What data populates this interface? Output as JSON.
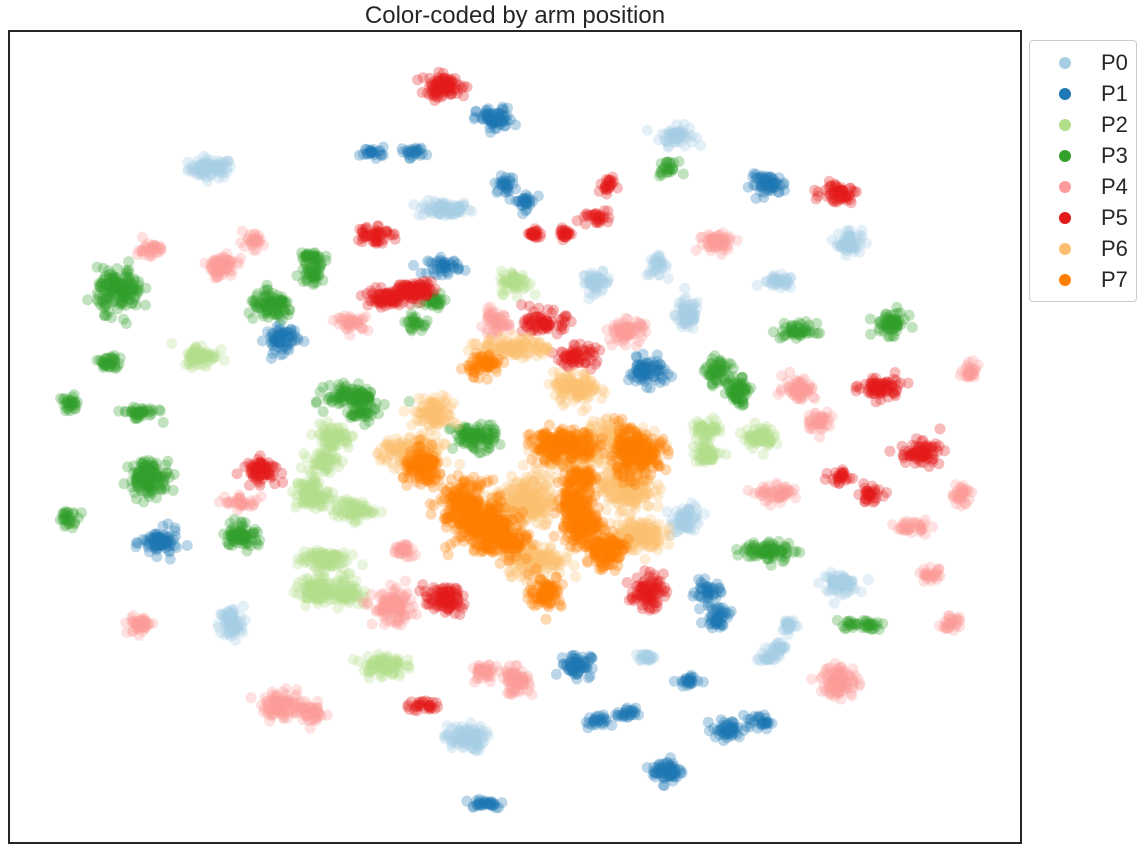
{
  "chart_data": {
    "type": "scatter",
    "title": "Color-coded by arm position",
    "xlabel": "",
    "ylabel": "",
    "xlim": [
      0,
      100
    ],
    "ylim": [
      0,
      100
    ],
    "grid": false,
    "legend_placement": "outside upper-right",
    "marker_alpha": 0.3,
    "series": [
      {
        "name": "P0",
        "color": "#a6cee3",
        "clusters": [
          [
            20,
            83,
            2.2,
            1.2
          ],
          [
            43,
            78,
            2.6,
            1.0
          ],
          [
            66,
            87,
            1.7,
            1.2
          ],
          [
            83,
            74,
            1.2,
            1.6
          ],
          [
            58,
            69,
            1.4,
            1.2
          ],
          [
            64,
            71,
            1.0,
            1.2
          ],
          [
            67,
            65,
            1.2,
            2.0
          ],
          [
            76,
            69,
            1.6,
            0.8
          ],
          [
            67,
            40,
            1.4,
            1.6
          ],
          [
            82,
            32,
            1.8,
            1.2
          ],
          [
            22,
            27,
            1.2,
            2.2
          ],
          [
            77,
            27,
            0.8,
            0.9
          ],
          [
            76,
            24,
            0.9,
            0.8
          ],
          [
            75,
            23,
            0.9,
            0.6
          ],
          [
            63,
            23,
            0.8,
            0.5
          ],
          [
            45,
            13,
            2.0,
            1.6
          ]
        ]
      },
      {
        "name": "P1",
        "color": "#1f78b4",
        "clusters": [
          [
            48,
            89,
            1.8,
            1.4
          ],
          [
            36,
            85,
            1.2,
            0.6
          ],
          [
            40,
            85,
            1.2,
            0.7
          ],
          [
            49,
            81,
            1.0,
            1.0
          ],
          [
            51,
            79,
            1.0,
            1.0
          ],
          [
            75,
            81,
            1.8,
            1.2
          ],
          [
            43,
            71,
            1.6,
            1.0
          ],
          [
            27,
            62,
            1.6,
            1.6
          ],
          [
            63,
            58,
            1.8,
            1.6
          ],
          [
            15,
            37,
            1.8,
            1.6
          ],
          [
            69,
            31,
            1.2,
            1.2
          ],
          [
            70,
            28,
            1.2,
            1.4
          ],
          [
            56,
            22,
            1.5,
            1.5
          ],
          [
            67,
            20,
            1.1,
            0.7
          ],
          [
            58,
            15,
            1.1,
            0.8
          ],
          [
            61,
            16,
            0.9,
            0.7
          ],
          [
            71,
            14,
            1.5,
            1.2
          ],
          [
            74,
            15,
            1.2,
            0.9
          ],
          [
            65,
            9,
            1.5,
            1.5
          ],
          [
            47,
            5,
            2.0,
            0.6
          ]
        ]
      },
      {
        "name": "P2",
        "color": "#b2df8a",
        "clusters": [
          [
            50,
            69,
            1.4,
            1.4
          ],
          [
            19,
            60,
            1.7,
            1.4
          ],
          [
            32,
            50,
            1.8,
            1.5
          ],
          [
            31,
            47,
            1.5,
            1.2
          ],
          [
            30,
            43,
            1.6,
            2.0
          ],
          [
            34,
            41,
            2.0,
            1.2
          ],
          [
            31,
            35,
            2.4,
            1.4
          ],
          [
            30,
            31,
            1.6,
            1.6
          ],
          [
            33,
            31,
            1.8,
            1.8
          ],
          [
            69,
            51,
            1.5,
            1.2
          ],
          [
            69,
            48,
            1.4,
            1.2
          ],
          [
            74,
            50,
            1.5,
            1.4
          ],
          [
            37,
            22,
            2.0,
            1.5
          ]
        ]
      },
      {
        "name": "P3",
        "color": "#33a02c",
        "clusters": [
          [
            11,
            68,
            2.2,
            2.6
          ],
          [
            26,
            66,
            2.2,
            1.6
          ],
          [
            30,
            72,
            1.2,
            1.0
          ],
          [
            30,
            70,
            1.2,
            1.2
          ],
          [
            42,
            67,
            1.2,
            1.0
          ],
          [
            40,
            64,
            0.9,
            0.9
          ],
          [
            65,
            83,
            1.0,
            0.8
          ],
          [
            78,
            63,
            1.8,
            1.0
          ],
          [
            87,
            64,
            1.6,
            1.4
          ],
          [
            10,
            59,
            1.2,
            1.0
          ],
          [
            13,
            53,
            1.8,
            0.8
          ],
          [
            6,
            54,
            1.0,
            1.0
          ],
          [
            34,
            55,
            2.6,
            1.4
          ],
          [
            35,
            53,
            1.2,
            1.2
          ],
          [
            46,
            50,
            2.2,
            1.6
          ],
          [
            70,
            58,
            1.2,
            1.6
          ],
          [
            72,
            56,
            1.2,
            1.2
          ],
          [
            72,
            55,
            1.0,
            1.0
          ],
          [
            14,
            45,
            2.0,
            2.2
          ],
          [
            6,
            40,
            1.0,
            1.0
          ],
          [
            23,
            38,
            1.6,
            1.6
          ],
          [
            75,
            36,
            2.6,
            1.2
          ],
          [
            84,
            27,
            2.4,
            0.6
          ]
        ]
      },
      {
        "name": "P4",
        "color": "#fb9a99",
        "clusters": [
          [
            14,
            73,
            1.2,
            1.0
          ],
          [
            21,
            71,
            1.6,
            1.4
          ],
          [
            24,
            74,
            1.2,
            0.9
          ],
          [
            48,
            64,
            1.4,
            1.4
          ],
          [
            61,
            63,
            1.8,
            1.4
          ],
          [
            34,
            64,
            1.6,
            0.9
          ],
          [
            70,
            74,
            1.8,
            1.2
          ],
          [
            78,
            56,
            1.6,
            1.4
          ],
          [
            80,
            52,
            1.2,
            1.2
          ],
          [
            95,
            58,
            1.0,
            1.0
          ],
          [
            23,
            42,
            1.6,
            0.8
          ],
          [
            39,
            36,
            1.1,
            1.0
          ],
          [
            76,
            43,
            2.0,
            1.0
          ],
          [
            89,
            39,
            1.6,
            0.8
          ],
          [
            94,
            43,
            1.0,
            1.2
          ],
          [
            91,
            33,
            1.2,
            0.8
          ],
          [
            93,
            27,
            1.0,
            1.0
          ],
          [
            38,
            29,
            2.0,
            2.0
          ],
          [
            13,
            27,
            1.2,
            1.2
          ],
          [
            47,
            21,
            1.2,
            1.2
          ],
          [
            50,
            20,
            1.4,
            1.6
          ],
          [
            82,
            20,
            1.8,
            2.0
          ],
          [
            27,
            17,
            2.0,
            1.6
          ],
          [
            30,
            16,
            1.2,
            1.2
          ]
        ]
      },
      {
        "name": "P5",
        "color": "#e31a1c",
        "clusters": [
          [
            43,
            93,
            2.2,
            1.4
          ],
          [
            58,
            77,
            1.2,
            0.9
          ],
          [
            59,
            81,
            1.0,
            0.8
          ],
          [
            82,
            80,
            1.8,
            1.2
          ],
          [
            36,
            75,
            1.6,
            1.2
          ],
          [
            37,
            67,
            2.2,
            1.2
          ],
          [
            40,
            68,
            2.0,
            1.2
          ],
          [
            53,
            64,
            2.0,
            1.4
          ],
          [
            56,
            60,
            2.0,
            1.2
          ],
          [
            86,
            56,
            2.0,
            1.4
          ],
          [
            90,
            48,
            2.0,
            1.4
          ],
          [
            25,
            46,
            1.8,
            1.4
          ],
          [
            82,
            45,
            1.0,
            1.0
          ],
          [
            85,
            43,
            1.2,
            1.0
          ],
          [
            43,
            30,
            2.0,
            1.6
          ],
          [
            63,
            31,
            1.6,
            2.0
          ],
          [
            41,
            17,
            1.4,
            0.8
          ],
          [
            52,
            75,
            0.6,
            0.6
          ],
          [
            55,
            75,
            0.6,
            0.6
          ],
          [
            40,
            68,
            1.8,
            0.9
          ]
        ]
      },
      {
        "name": "P6",
        "color": "#fdbf6f",
        "clusters": [
          [
            50,
            61,
            3.4,
            1.2
          ],
          [
            42,
            53,
            2.0,
            1.8
          ],
          [
            40,
            48,
            3.0,
            2.0
          ],
          [
            51,
            42,
            3.0,
            3.0
          ],
          [
            52,
            35,
            2.8,
            2.0
          ],
          [
            55,
            48,
            3.0,
            2.2
          ],
          [
            60,
            50,
            3.0,
            2.0
          ],
          [
            61,
            44,
            2.6,
            3.0
          ],
          [
            62,
            38,
            2.6,
            2.0
          ],
          [
            56,
            56,
            2.2,
            1.8
          ]
        ]
      },
      {
        "name": "P7",
        "color": "#ff7f00",
        "clusters": [
          [
            47,
            59,
            1.6,
            1.4
          ],
          [
            41,
            46,
            2.0,
            2.2
          ],
          [
            45,
            42,
            2.4,
            2.6
          ],
          [
            47,
            39,
            3.2,
            2.6
          ],
          [
            49,
            37,
            2.2,
            1.8
          ],
          [
            54,
            49,
            2.4,
            2.0
          ],
          [
            56,
            49,
            2.4,
            1.4
          ],
          [
            56,
            42,
            1.6,
            4.0
          ],
          [
            57,
            39,
            1.6,
            3.0
          ],
          [
            59,
            36,
            1.8,
            2.2
          ],
          [
            61,
            48,
            1.6,
            3.0
          ],
          [
            63,
            48,
            2.0,
            2.0
          ],
          [
            57,
            45,
            1.2,
            1.2
          ],
          [
            53,
            31,
            1.6,
            2.0
          ]
        ]
      }
    ]
  }
}
